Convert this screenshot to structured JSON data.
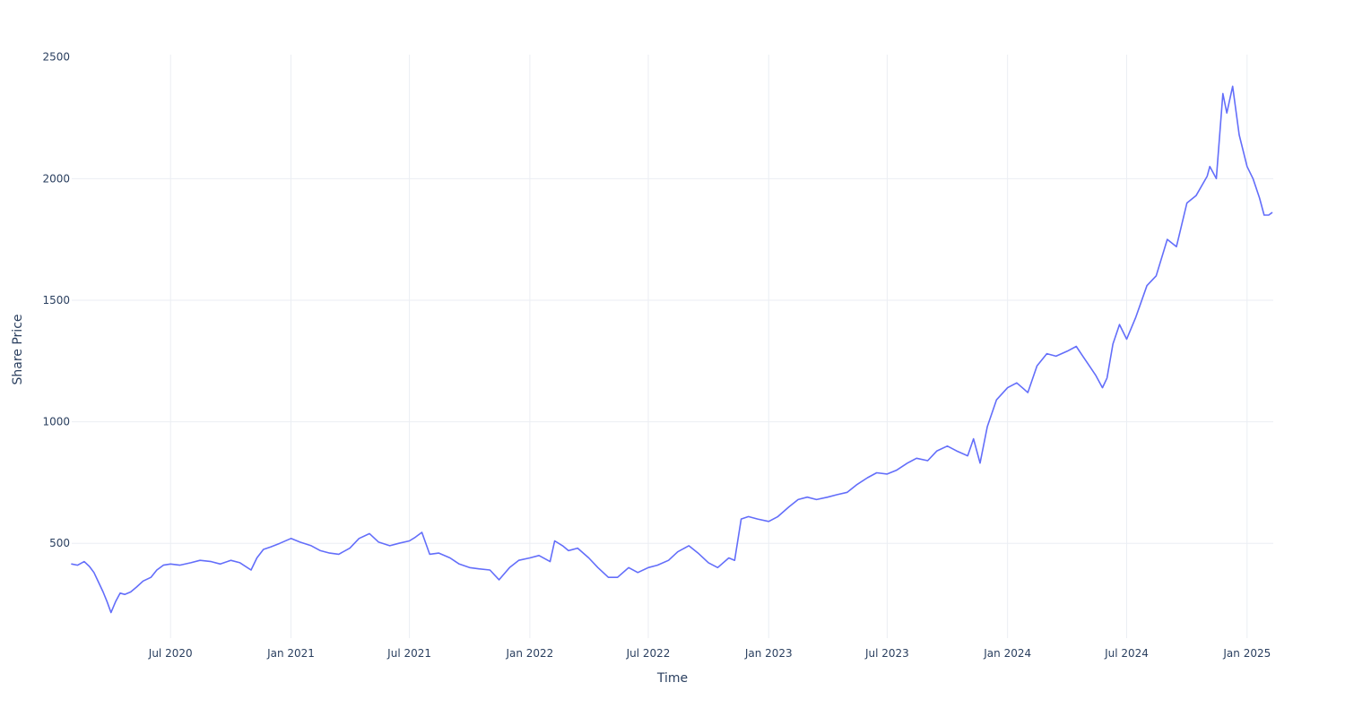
{
  "chart_data": {
    "type": "line",
    "xlabel": "Time",
    "ylabel": "Share Price",
    "xlim": [
      "2020-02-01",
      "2025-02-10"
    ],
    "ylim": [
      110,
      2510
    ],
    "grid": true,
    "legend": "none",
    "line_color": "#636efa",
    "x_ticks": [
      {
        "date": "2020-07-01",
        "label": "Jul 2020"
      },
      {
        "date": "2021-01-01",
        "label": "Jan 2021"
      },
      {
        "date": "2021-07-01",
        "label": "Jul 2021"
      },
      {
        "date": "2022-01-01",
        "label": "Jan 2022"
      },
      {
        "date": "2022-07-01",
        "label": "Jul 2022"
      },
      {
        "date": "2023-01-01",
        "label": "Jan 2023"
      },
      {
        "date": "2023-07-01",
        "label": "Jul 2023"
      },
      {
        "date": "2024-01-01",
        "label": "Jan 2024"
      },
      {
        "date": "2024-07-01",
        "label": "Jul 2024"
      },
      {
        "date": "2025-01-01",
        "label": "Jan 2025"
      }
    ],
    "y_ticks": [
      {
        "value": 500,
        "label": "500"
      },
      {
        "value": 1000,
        "label": "1000"
      },
      {
        "value": 1500,
        "label": "1500"
      },
      {
        "value": 2000,
        "label": "2000"
      },
      {
        "value": 2500,
        "label": "2500"
      }
    ],
    "series": [
      {
        "x": [
          "2020-02-01",
          "2020-02-10",
          "2020-02-20",
          "2020-02-28",
          "2020-03-06",
          "2020-03-13",
          "2020-03-20",
          "2020-03-26",
          "2020-04-01",
          "2020-04-08",
          "2020-04-15",
          "2020-04-22",
          "2020-05-01",
          "2020-05-10",
          "2020-05-20",
          "2020-06-01",
          "2020-06-10",
          "2020-06-20",
          "2020-07-01",
          "2020-07-15",
          "2020-08-01",
          "2020-08-15",
          "2020-09-01",
          "2020-09-15",
          "2020-10-01",
          "2020-10-15",
          "2020-11-01",
          "2020-11-10",
          "2020-11-20",
          "2020-12-01",
          "2020-12-15",
          "2021-01-01",
          "2021-01-15",
          "2021-02-01",
          "2021-02-15",
          "2021-03-01",
          "2021-03-15",
          "2021-04-01",
          "2021-04-15",
          "2021-05-01",
          "2021-05-15",
          "2021-06-01",
          "2021-06-15",
          "2021-07-01",
          "2021-07-10",
          "2021-07-20",
          "2021-08-01",
          "2021-08-15",
          "2021-09-01",
          "2021-09-15",
          "2021-10-01",
          "2021-10-15",
          "2021-11-01",
          "2021-11-15",
          "2021-12-01",
          "2021-12-15",
          "2022-01-01",
          "2022-01-15",
          "2022-02-01",
          "2022-02-08",
          "2022-02-20",
          "2022-03-01",
          "2022-03-15",
          "2022-04-01",
          "2022-04-15",
          "2022-05-01",
          "2022-05-15",
          "2022-06-01",
          "2022-06-15",
          "2022-07-01",
          "2022-07-15",
          "2022-08-01",
          "2022-08-15",
          "2022-09-01",
          "2022-09-15",
          "2022-10-01",
          "2022-10-15",
          "2022-11-01",
          "2022-11-10",
          "2022-11-20",
          "2022-12-01",
          "2022-12-15",
          "2023-01-01",
          "2023-01-15",
          "2023-02-01",
          "2023-02-15",
          "2023-03-01",
          "2023-03-15",
          "2023-04-01",
          "2023-04-15",
          "2023-05-01",
          "2023-05-15",
          "2023-06-01",
          "2023-06-15",
          "2023-07-01",
          "2023-07-15",
          "2023-08-01",
          "2023-08-15",
          "2023-09-01",
          "2023-09-15",
          "2023-10-01",
          "2023-10-15",
          "2023-11-01",
          "2023-11-10",
          "2023-11-20",
          "2023-12-01",
          "2023-12-15",
          "2024-01-01",
          "2024-01-15",
          "2024-02-01",
          "2024-02-15",
          "2024-03-01",
          "2024-03-15",
          "2024-04-01",
          "2024-04-15",
          "2024-04-25",
          "2024-05-05",
          "2024-05-15",
          "2024-05-25",
          "2024-06-01",
          "2024-06-10",
          "2024-06-20",
          "2024-07-01",
          "2024-07-15",
          "2024-08-01",
          "2024-08-15",
          "2024-09-01",
          "2024-09-15",
          "2024-10-01",
          "2024-10-15",
          "2024-11-01",
          "2024-11-05",
          "2024-11-15",
          "2024-11-25",
          "2024-12-01",
          "2024-12-10",
          "2024-12-20",
          "2025-01-01",
          "2025-01-10",
          "2025-01-20",
          "2025-01-27",
          "2025-02-03",
          "2025-02-08"
        ],
        "y": [
          415,
          410,
          425,
          405,
          380,
          340,
          300,
          260,
          215,
          260,
          295,
          290,
          300,
          320,
          345,
          360,
          390,
          410,
          415,
          410,
          420,
          430,
          425,
          415,
          430,
          420,
          390,
          440,
          475,
          485,
          500,
          520,
          505,
          490,
          470,
          460,
          455,
          480,
          520,
          540,
          505,
          490,
          500,
          510,
          525,
          545,
          455,
          460,
          440,
          415,
          400,
          395,
          390,
          350,
          400,
          430,
          440,
          450,
          425,
          510,
          490,
          470,
          480,
          440,
          400,
          360,
          360,
          400,
          380,
          400,
          410,
          430,
          465,
          490,
          460,
          420,
          400,
          440,
          430,
          600,
          610,
          600,
          590,
          610,
          650,
          680,
          690,
          680,
          690,
          700,
          710,
          740,
          770,
          790,
          785,
          800,
          830,
          850,
          840,
          880,
          900,
          880,
          860,
          930,
          830,
          980,
          1090,
          1140,
          1160,
          1120,
          1230,
          1280,
          1270,
          1290,
          1310,
          1270,
          1230,
          1190,
          1140,
          1180,
          1320,
          1400,
          1340,
          1430,
          1560,
          1600,
          1750,
          1720,
          1900,
          1930,
          2010,
          2050,
          2000,
          2350,
          2270,
          2380,
          2180,
          2050,
          2000,
          1920,
          1850,
          1850,
          1860
        ]
      }
    ]
  }
}
